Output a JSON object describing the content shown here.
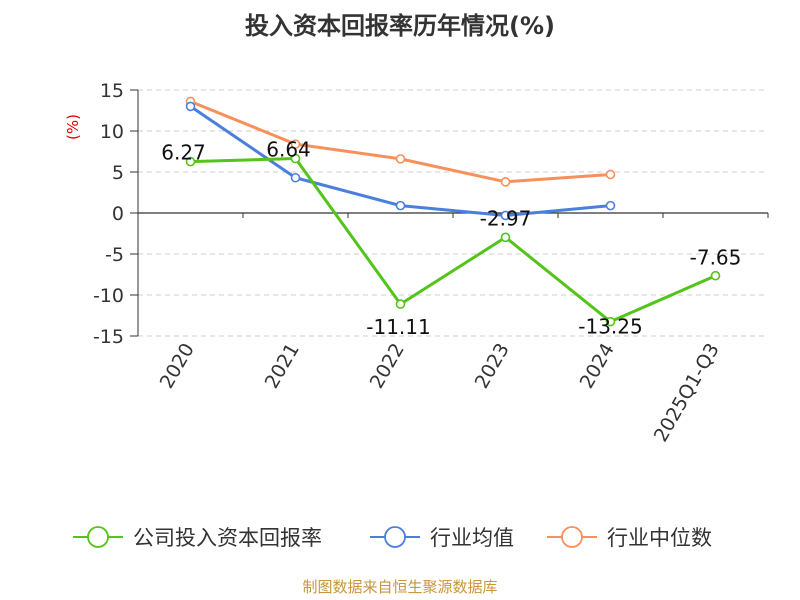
{
  "chart_data": {
    "type": "line",
    "title": "投入资本回报率历年情况(%)",
    "ylabel": "(%)",
    "xlabel": "",
    "categories": [
      "2020",
      "2021",
      "2022",
      "2023",
      "2024",
      "2025Q1-Q3"
    ],
    "ylim": [
      -15,
      15
    ],
    "yticks": [
      15,
      10,
      5,
      0,
      -5,
      -10,
      -15
    ],
    "grid": true,
    "legend_position": "bottom",
    "series": [
      {
        "name": "公司投入资本回报率",
        "color": "#52c41a",
        "values": [
          6.27,
          6.64,
          -11.11,
          -2.97,
          -13.25,
          -7.65
        ],
        "labels": [
          "6.27",
          "6.64",
          "-11.11",
          "-2.97",
          "-13.25",
          "-7.65"
        ]
      },
      {
        "name": "行业均值",
        "color": "#4a7fdc",
        "values": [
          13.0,
          4.3,
          0.9,
          -0.3,
          0.9,
          null
        ]
      },
      {
        "name": "行业中位数",
        "color": "#f7905a",
        "values": [
          13.6,
          8.4,
          6.6,
          3.8,
          4.7,
          null
        ]
      }
    ]
  },
  "source": "制图数据来自恒生聚源数据库"
}
